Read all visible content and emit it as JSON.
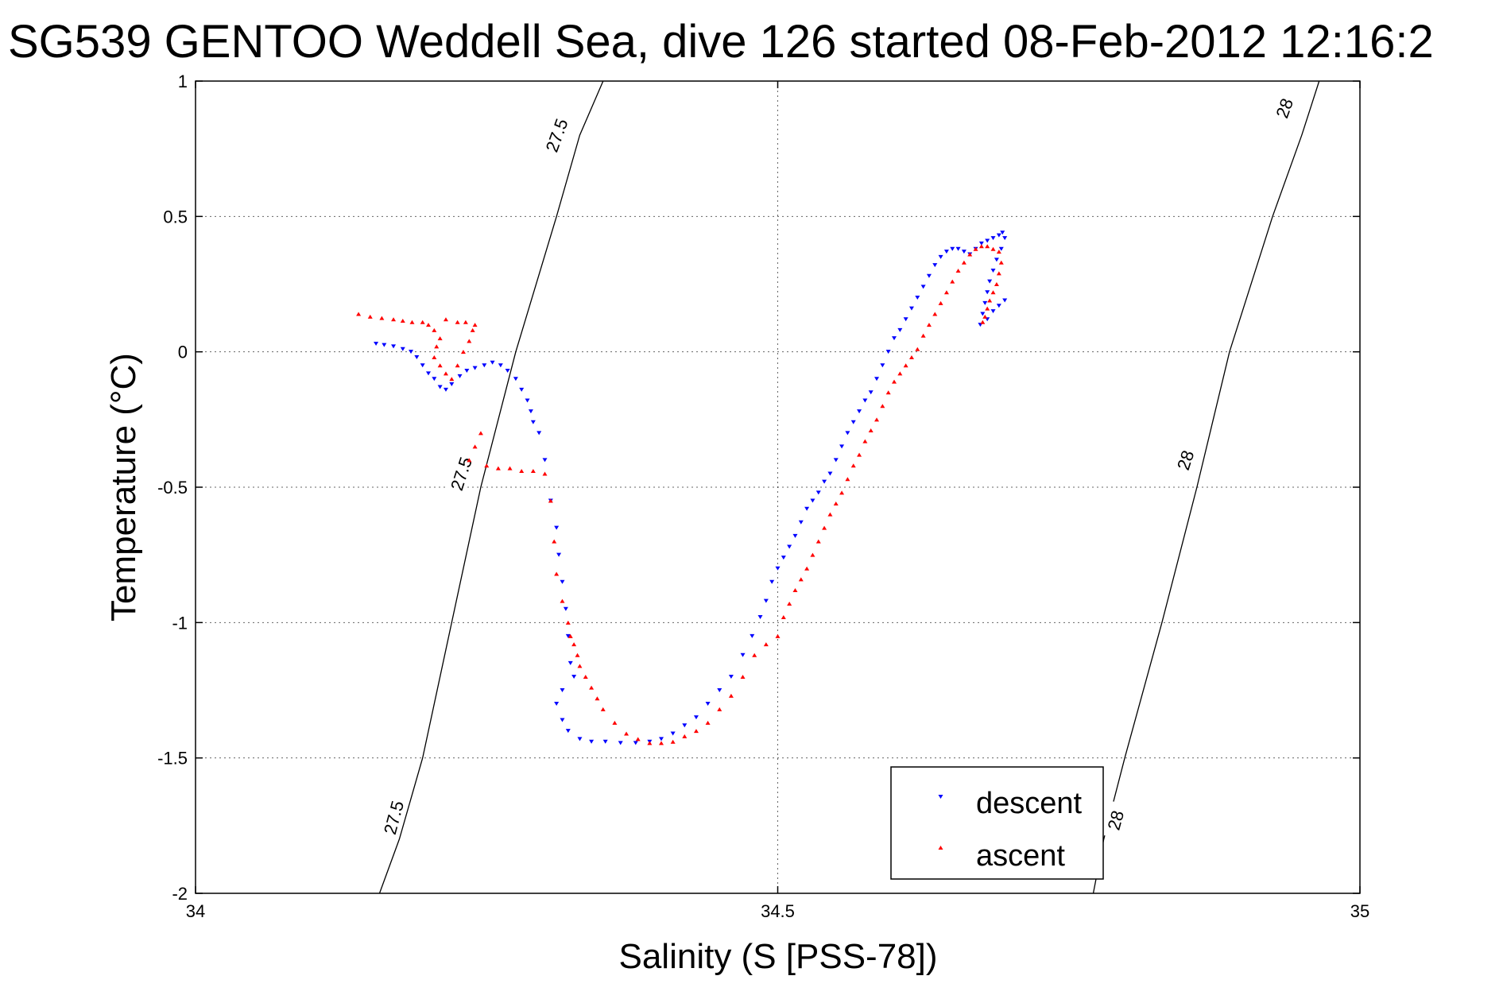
{
  "chart_data": {
    "type": "scatter",
    "title": "SG539 GENTOO Weddell Sea, dive 126 started 08-Feb-2012 12:16:2",
    "xlabel": "Salinity (S [PSS-78])",
    "ylabel": "Temperature (°C)",
    "xlim": [
      34,
      35
    ],
    "ylim": [
      -2,
      1
    ],
    "x_ticks": [
      34,
      34.5,
      35
    ],
    "x_tick_labels": [
      "34",
      "34.5",
      "35"
    ],
    "y_ticks": [
      -2,
      -1.5,
      -1,
      -0.5,
      0,
      0.5,
      1
    ],
    "y_tick_labels": [
      "-2",
      "-1.5",
      "-1",
      "-0.5",
      "0",
      "0.5",
      "1"
    ],
    "grid": true,
    "legend": {
      "position": "bottom-right",
      "entries": [
        "descent",
        "ascent"
      ]
    },
    "isopycnals": [
      {
        "value": 27.5,
        "line": [
          [
            34.158,
            -2
          ],
          [
            34.175,
            -1.8
          ],
          [
            34.195,
            -1.5
          ],
          [
            34.22,
            -1.0
          ],
          [
            34.245,
            -0.5
          ],
          [
            34.275,
            0
          ],
          [
            34.31,
            0.5
          ],
          [
            34.33,
            0.8
          ],
          [
            34.35,
            1
          ]
        ],
        "labels": [
          {
            "text": "27.5",
            "s": 34.17,
            "t": -1.72,
            "rotation": -75
          },
          {
            "text": "27.5",
            "s": 34.228,
            "t": -0.45,
            "rotation": -72
          },
          {
            "text": "27.5",
            "s": 34.31,
            "t": 0.8,
            "rotation": -70
          }
        ]
      },
      {
        "value": 28,
        "line": [
          [
            34.771,
            -2
          ],
          [
            34.78,
            -1.8
          ],
          [
            34.798,
            -1.5
          ],
          [
            34.83,
            -1.0
          ],
          [
            34.86,
            -0.5
          ],
          [
            34.888,
            0
          ],
          [
            34.925,
            0.5
          ],
          [
            34.95,
            0.8
          ],
          [
            34.965,
            1
          ]
        ],
        "labels": [
          {
            "text": "28",
            "s": 34.79,
            "t": -1.73,
            "rotation": -75
          },
          {
            "text": "28",
            "s": 34.85,
            "t": -0.4,
            "rotation": -72
          },
          {
            "text": "28",
            "s": 34.935,
            "t": 0.9,
            "rotation": -70
          }
        ]
      }
    ],
    "series": [
      {
        "name": "descent",
        "color": "#0000ff",
        "marker": "triangle-down",
        "points": [
          [
            34.155,
            0.03
          ],
          [
            34.162,
            0.025
          ],
          [
            34.17,
            0.02
          ],
          [
            34.178,
            0.01
          ],
          [
            34.185,
            0.0
          ],
          [
            34.19,
            -0.02
          ],
          [
            34.195,
            -0.05
          ],
          [
            34.2,
            -0.08
          ],
          [
            34.205,
            -0.1
          ],
          [
            34.21,
            -0.13
          ],
          [
            34.215,
            -0.14
          ],
          [
            34.22,
            -0.12
          ],
          [
            34.227,
            -0.09
          ],
          [
            34.233,
            -0.07
          ],
          [
            34.24,
            -0.06
          ],
          [
            34.248,
            -0.05
          ],
          [
            34.255,
            -0.04
          ],
          [
            34.262,
            -0.05
          ],
          [
            34.268,
            -0.07
          ],
          [
            34.275,
            -0.1
          ],
          [
            34.28,
            -0.14
          ],
          [
            34.285,
            -0.18
          ],
          [
            34.288,
            -0.22
          ],
          [
            34.29,
            -0.26
          ],
          [
            34.295,
            -0.3
          ],
          [
            34.3,
            -0.4
          ],
          [
            34.305,
            -0.55
          ],
          [
            34.31,
            -0.65
          ],
          [
            34.312,
            -0.75
          ],
          [
            34.315,
            -0.85
          ],
          [
            34.318,
            -0.95
          ],
          [
            34.32,
            -1.05
          ],
          [
            34.322,
            -1.15
          ],
          [
            34.325,
            -1.2
          ],
          [
            34.315,
            -1.25
          ],
          [
            34.31,
            -1.3
          ],
          [
            34.315,
            -1.36
          ],
          [
            34.32,
            -1.4
          ],
          [
            34.33,
            -1.43
          ],
          [
            34.34,
            -1.44
          ],
          [
            34.352,
            -1.44
          ],
          [
            34.365,
            -1.445
          ],
          [
            34.378,
            -1.445
          ],
          [
            34.39,
            -1.44
          ],
          [
            34.4,
            -1.43
          ],
          [
            34.41,
            -1.41
          ],
          [
            34.42,
            -1.38
          ],
          [
            34.43,
            -1.35
          ],
          [
            34.44,
            -1.3
          ],
          [
            34.45,
            -1.25
          ],
          [
            34.46,
            -1.2
          ],
          [
            34.47,
            -1.12
          ],
          [
            34.478,
            -1.05
          ],
          [
            34.485,
            -0.98
          ],
          [
            34.49,
            -0.92
          ],
          [
            34.495,
            -0.85
          ],
          [
            34.5,
            -0.8
          ],
          [
            34.505,
            -0.76
          ],
          [
            34.51,
            -0.72
          ],
          [
            34.515,
            -0.68
          ],
          [
            34.52,
            -0.63
          ],
          [
            34.525,
            -0.58
          ],
          [
            34.53,
            -0.55
          ],
          [
            34.535,
            -0.52
          ],
          [
            34.54,
            -0.48
          ],
          [
            34.545,
            -0.45
          ],
          [
            34.55,
            -0.4
          ],
          [
            34.555,
            -0.35
          ],
          [
            34.56,
            -0.3
          ],
          [
            34.565,
            -0.26
          ],
          [
            34.57,
            -0.22
          ],
          [
            34.575,
            -0.18
          ],
          [
            34.58,
            -0.15
          ],
          [
            34.585,
            -0.1
          ],
          [
            34.59,
            -0.05
          ],
          [
            34.595,
            0.0
          ],
          [
            34.6,
            0.05
          ],
          [
            34.605,
            0.08
          ],
          [
            34.61,
            0.12
          ],
          [
            34.615,
            0.16
          ],
          [
            34.62,
            0.2
          ],
          [
            34.625,
            0.24
          ],
          [
            34.63,
            0.28
          ],
          [
            34.635,
            0.32
          ],
          [
            34.64,
            0.35
          ],
          [
            34.645,
            0.37
          ],
          [
            34.65,
            0.38
          ],
          [
            34.655,
            0.38
          ],
          [
            34.66,
            0.37
          ],
          [
            34.665,
            0.36
          ],
          [
            34.67,
            0.38
          ],
          [
            34.675,
            0.4
          ],
          [
            34.68,
            0.41
          ],
          [
            34.685,
            0.42
          ],
          [
            34.69,
            0.43
          ],
          [
            34.693,
            0.44
          ],
          [
            34.695,
            0.42
          ],
          [
            34.692,
            0.38
          ],
          [
            34.688,
            0.34
          ],
          [
            34.685,
            0.3
          ],
          [
            34.682,
            0.26
          ],
          [
            34.68,
            0.22
          ],
          [
            34.678,
            0.18
          ],
          [
            34.676,
            0.14
          ],
          [
            34.674,
            0.1
          ],
          [
            34.68,
            0.12
          ],
          [
            34.685,
            0.15
          ],
          [
            34.69,
            0.17
          ],
          [
            34.695,
            0.19
          ]
        ]
      },
      {
        "name": "ascent",
        "color": "#ff0000",
        "marker": "triangle-up",
        "points": [
          [
            34.14,
            0.14
          ],
          [
            34.15,
            0.13
          ],
          [
            34.16,
            0.125
          ],
          [
            34.17,
            0.12
          ],
          [
            34.178,
            0.115
          ],
          [
            34.186,
            0.11
          ],
          [
            34.195,
            0.11
          ],
          [
            34.2,
            0.1
          ],
          [
            34.205,
            0.08
          ],
          [
            34.21,
            0.05
          ],
          [
            34.207,
            0.02
          ],
          [
            34.205,
            -0.02
          ],
          [
            34.21,
            -0.05
          ],
          [
            34.215,
            -0.08
          ],
          [
            34.22,
            -0.1
          ],
          [
            34.225,
            -0.05
          ],
          [
            34.23,
            0.0
          ],
          [
            34.235,
            0.04
          ],
          [
            34.238,
            0.08
          ],
          [
            34.24,
            0.1
          ],
          [
            34.232,
            0.11
          ],
          [
            34.225,
            0.11
          ],
          [
            34.215,
            0.12
          ],
          [
            34.245,
            -0.3
          ],
          [
            34.24,
            -0.35
          ],
          [
            34.235,
            -0.4
          ],
          [
            34.25,
            -0.42
          ],
          [
            34.26,
            -0.43
          ],
          [
            34.27,
            -0.43
          ],
          [
            34.28,
            -0.44
          ],
          [
            34.29,
            -0.44
          ],
          [
            34.3,
            -0.45
          ],
          [
            34.305,
            -0.55
          ],
          [
            34.308,
            -0.7
          ],
          [
            34.31,
            -0.82
          ],
          [
            34.315,
            -0.92
          ],
          [
            34.32,
            -1.0
          ],
          [
            34.322,
            -1.05
          ],
          [
            34.325,
            -1.08
          ],
          [
            34.328,
            -1.12
          ],
          [
            34.33,
            -1.16
          ],
          [
            34.335,
            -1.2
          ],
          [
            34.34,
            -1.24
          ],
          [
            34.345,
            -1.28
          ],
          [
            34.35,
            -1.32
          ],
          [
            34.36,
            -1.37
          ],
          [
            34.37,
            -1.41
          ],
          [
            34.38,
            -1.43
          ],
          [
            34.39,
            -1.445
          ],
          [
            34.4,
            -1.445
          ],
          [
            34.41,
            -1.44
          ],
          [
            34.42,
            -1.42
          ],
          [
            34.43,
            -1.4
          ],
          [
            34.44,
            -1.37
          ],
          [
            34.45,
            -1.32
          ],
          [
            34.46,
            -1.27
          ],
          [
            34.47,
            -1.2
          ],
          [
            34.48,
            -1.12
          ],
          [
            34.49,
            -1.08
          ],
          [
            34.5,
            -1.05
          ],
          [
            34.505,
            -0.98
          ],
          [
            34.51,
            -0.93
          ],
          [
            34.515,
            -0.88
          ],
          [
            34.52,
            -0.84
          ],
          [
            34.525,
            -0.8
          ],
          [
            34.53,
            -0.75
          ],
          [
            34.535,
            -0.7
          ],
          [
            34.54,
            -0.65
          ],
          [
            34.545,
            -0.6
          ],
          [
            34.55,
            -0.56
          ],
          [
            34.555,
            -0.52
          ],
          [
            34.56,
            -0.47
          ],
          [
            34.565,
            -0.42
          ],
          [
            34.57,
            -0.38
          ],
          [
            34.575,
            -0.33
          ],
          [
            34.58,
            -0.29
          ],
          [
            34.585,
            -0.25
          ],
          [
            34.59,
            -0.2
          ],
          [
            34.595,
            -0.15
          ],
          [
            34.6,
            -0.11
          ],
          [
            34.605,
            -0.08
          ],
          [
            34.61,
            -0.05
          ],
          [
            34.615,
            -0.02
          ],
          [
            34.62,
            0.01
          ],
          [
            34.625,
            0.06
          ],
          [
            34.63,
            0.1
          ],
          [
            34.635,
            0.14
          ],
          [
            34.64,
            0.18
          ],
          [
            34.645,
            0.22
          ],
          [
            34.65,
            0.26
          ],
          [
            34.655,
            0.3
          ],
          [
            34.66,
            0.33
          ],
          [
            34.665,
            0.36
          ],
          [
            34.67,
            0.38
          ],
          [
            34.675,
            0.39
          ],
          [
            34.68,
            0.39
          ],
          [
            34.685,
            0.38
          ],
          [
            34.69,
            0.37
          ],
          [
            34.692,
            0.33
          ],
          [
            34.69,
            0.29
          ],
          [
            34.688,
            0.25
          ],
          [
            34.685,
            0.22
          ],
          [
            34.682,
            0.19
          ],
          [
            34.68,
            0.16
          ],
          [
            34.678,
            0.13
          ],
          [
            34.676,
            0.11
          ]
        ]
      }
    ]
  }
}
